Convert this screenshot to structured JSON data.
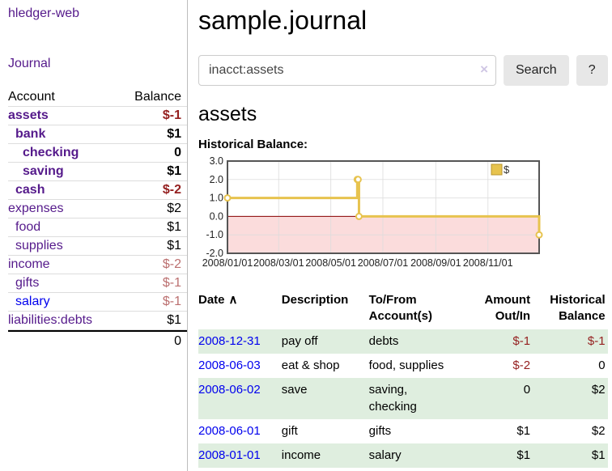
{
  "sidebar": {
    "brand": "hledger-web",
    "nav_journal": "Journal",
    "accounts_table": {
      "headers": {
        "account": "Account",
        "balance": "Balance"
      },
      "rows": [
        {
          "name": "assets",
          "balance": "$-1",
          "level": 0,
          "bold": true,
          "link": "purple",
          "amount_tone": "negative-strong"
        },
        {
          "name": "bank",
          "balance": "$1",
          "level": 1,
          "bold": true,
          "link": "purple",
          "amount_tone": "normal"
        },
        {
          "name": "checking",
          "balance": "0",
          "level": 2,
          "bold": true,
          "link": "purple",
          "amount_tone": "normal"
        },
        {
          "name": "saving",
          "balance": "$1",
          "level": 2,
          "bold": true,
          "link": "purple",
          "amount_tone": "normal"
        },
        {
          "name": "cash",
          "balance": "$-2",
          "level": 1,
          "bold": true,
          "link": "purple",
          "amount_tone": "negative-strong"
        },
        {
          "name": "expenses",
          "balance": "$2",
          "level": 0,
          "bold": false,
          "link": "purple",
          "amount_tone": "normal"
        },
        {
          "name": "food",
          "balance": "$1",
          "level": 1,
          "bold": false,
          "link": "purple",
          "amount_tone": "normal"
        },
        {
          "name": "supplies",
          "balance": "$1",
          "level": 1,
          "bold": false,
          "link": "purple",
          "amount_tone": "normal"
        },
        {
          "name": "income",
          "balance": "$-2",
          "level": 0,
          "bold": false,
          "link": "purple",
          "amount_tone": "negative-soft"
        },
        {
          "name": "gifts",
          "balance": "$-1",
          "level": 1,
          "bold": false,
          "link": "purple",
          "amount_tone": "negative-soft"
        },
        {
          "name": "salary",
          "balance": "$-1",
          "level": 1,
          "bold": false,
          "link": "blue",
          "amount_tone": "negative-soft"
        },
        {
          "name": "liabilities:debts",
          "balance": "$1",
          "level": 0,
          "bold": false,
          "link": "purple",
          "amount_tone": "normal"
        }
      ],
      "total": "0"
    }
  },
  "main": {
    "title": "sample.journal",
    "search": {
      "value": "inacct:assets",
      "clear_icon": "×",
      "button_label": "Search",
      "help_label": "?"
    },
    "account_heading": "assets",
    "chart_label": "Historical Balance:",
    "transactions": {
      "headers": [
        "Date",
        "Description",
        "To/From\nAccount(s)",
        "Amount\nOut/In",
        "Historical\nBalance"
      ],
      "sort_indicator": "∧",
      "rows": [
        {
          "date": "2008-12-31",
          "description": "pay off",
          "accounts": "debts",
          "amount": "$-1",
          "balance": "$-1"
        },
        {
          "date": "2008-06-03",
          "description": "eat & shop",
          "accounts": "food, supplies",
          "amount": "$-2",
          "balance": "0"
        },
        {
          "date": "2008-06-02",
          "description": "save",
          "accounts": "saving,\nchecking",
          "amount": "0",
          "balance": "$2"
        },
        {
          "date": "2008-06-01",
          "description": "gift",
          "accounts": "gifts",
          "amount": "$1",
          "balance": "$2"
        },
        {
          "date": "2008-01-01",
          "description": "income",
          "accounts": "salary",
          "amount": "$1",
          "balance": "$1"
        }
      ]
    }
  },
  "colors": {
    "link_purple": "#551a8b",
    "link_blue": "#0000ee",
    "negative_strong": "#941f1f",
    "negative_soft": "#bb6f6f",
    "row_green": "#dfeedf",
    "line_gold": "#e7c34e",
    "legend_border": "#b8962e",
    "negative_region": "#fbdcdc",
    "zero_line": "#8b0000",
    "grid": "#dcdcdc",
    "plot_border": "#555555"
  },
  "chart_data": {
    "type": "line",
    "step": true,
    "title": "",
    "xlabel": "",
    "ylabel": "",
    "xlim": [
      "2008-01-01",
      "2008-12-31"
    ],
    "ylim": [
      -2,
      3
    ],
    "y_ticks": [
      "3.0",
      "2.0",
      "1.0",
      "0.0",
      "-1.0",
      "-2.0"
    ],
    "y_tick_values": [
      3,
      2,
      1,
      0,
      -1,
      -2
    ],
    "x_ticks": [
      "2008-01-01",
      "2008-03-01",
      "2008-05-01",
      "2008-07-01",
      "2008-09-01",
      "2008-11-01"
    ],
    "x_tick_labels": [
      "2008/01/01",
      "2008/03/01",
      "2008/05/01",
      "2008/07/01",
      "2008/09/01",
      "2008/11/01"
    ],
    "grid": true,
    "legend": {
      "label": "$",
      "position": "top-right"
    },
    "series": [
      {
        "name": "$",
        "points": [
          [
            "2008-01-01",
            1
          ],
          [
            "2008-06-01",
            2
          ],
          [
            "2008-06-02",
            2
          ],
          [
            "2008-06-03",
            0
          ],
          [
            "2008-12-31",
            -1
          ]
        ]
      }
    ]
  }
}
